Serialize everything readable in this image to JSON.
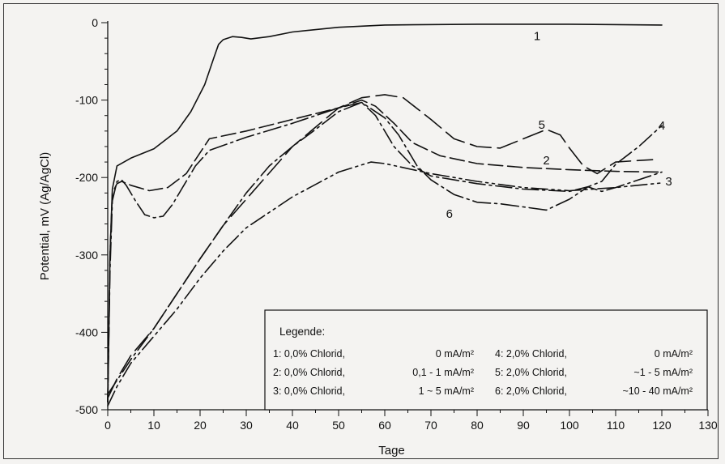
{
  "chart_data": {
    "type": "line",
    "title": "",
    "xlabel": "Tage",
    "ylabel": "Potential, mV (Ag/AgCl)",
    "xlim": [
      0,
      130
    ],
    "ylim": [
      -500,
      0
    ],
    "x_ticks": [
      0,
      10,
      20,
      30,
      40,
      50,
      60,
      70,
      80,
      90,
      100,
      110,
      120,
      130
    ],
    "y_ticks": [
      0,
      -100,
      -200,
      -300,
      -400,
      -500
    ],
    "grid": false,
    "series": [
      {
        "tag": "1",
        "dash": "",
        "points": [
          [
            0,
            -490
          ],
          [
            0.5,
            -300
          ],
          [
            1,
            -215
          ],
          [
            2,
            -185
          ],
          [
            5,
            -175
          ],
          [
            10,
            -163
          ],
          [
            15,
            -140
          ],
          [
            18,
            -115
          ],
          [
            21,
            -80
          ],
          [
            23,
            -45
          ],
          [
            24,
            -28
          ],
          [
            25,
            -22
          ],
          [
            27,
            -18
          ],
          [
            29,
            -19
          ],
          [
            31,
            -21
          ],
          [
            35,
            -18
          ],
          [
            40,
            -12
          ],
          [
            50,
            -6
          ],
          [
            60,
            -3
          ],
          [
            80,
            -2
          ],
          [
            100,
            -2
          ],
          [
            120,
            -3
          ]
        ]
      },
      {
        "tag": "2",
        "dash": "18 6",
        "points": [
          [
            0,
            -490
          ],
          [
            0.5,
            -300
          ],
          [
            1,
            -220
          ],
          [
            2,
            -208
          ],
          [
            3,
            -205
          ],
          [
            5,
            -210
          ],
          [
            9,
            -217
          ],
          [
            13,
            -213
          ],
          [
            17,
            -195
          ],
          [
            22,
            -150
          ],
          [
            30,
            -140
          ],
          [
            40,
            -125
          ],
          [
            50,
            -110
          ],
          [
            55,
            -100
          ],
          [
            58,
            -108
          ],
          [
            62,
            -130
          ],
          [
            66,
            -155
          ],
          [
            72,
            -172
          ],
          [
            80,
            -182
          ],
          [
            90,
            -187
          ],
          [
            100,
            -190
          ],
          [
            110,
            -192
          ],
          [
            120,
            -193
          ]
        ]
      },
      {
        "tag": "3",
        "dash": "20 5 3 5 3 5",
        "points": [
          [
            0,
            -495
          ],
          [
            2,
            -470
          ],
          [
            5,
            -440
          ],
          [
            10,
            -405
          ],
          [
            15,
            -370
          ],
          [
            20,
            -330
          ],
          [
            25,
            -295
          ],
          [
            30,
            -265
          ],
          [
            40,
            -225
          ],
          [
            50,
            -193
          ],
          [
            57,
            -180
          ],
          [
            60,
            -182
          ],
          [
            70,
            -195
          ],
          [
            80,
            -205
          ],
          [
            90,
            -213
          ],
          [
            100,
            -217
          ],
          [
            110,
            -213
          ],
          [
            120,
            -207
          ]
        ]
      },
      {
        "tag": "4",
        "dash": "20 5 3 5",
        "points": [
          [
            0,
            -480
          ],
          [
            2,
            -462
          ],
          [
            5,
            -435
          ],
          [
            10,
            -395
          ],
          [
            15,
            -350
          ],
          [
            20,
            -305
          ],
          [
            25,
            -262
          ],
          [
            30,
            -220
          ],
          [
            35,
            -185
          ],
          [
            40,
            -160
          ],
          [
            45,
            -138
          ],
          [
            50,
            -115
          ],
          [
            55,
            -103
          ],
          [
            58,
            -120
          ],
          [
            62,
            -160
          ],
          [
            66,
            -185
          ],
          [
            70,
            -198
          ],
          [
            80,
            -208
          ],
          [
            90,
            -215
          ],
          [
            100,
            -218
          ],
          [
            104,
            -212
          ],
          [
            107,
            -205
          ],
          [
            110,
            -183
          ],
          [
            115,
            -160
          ],
          [
            120,
            -133
          ]
        ]
      },
      {
        "tag": "5",
        "dash": "26 8",
        "points": [
          [
            0,
            -485
          ],
          [
            2,
            -460
          ],
          [
            5,
            -430
          ],
          [
            10,
            -395
          ],
          [
            15,
            -350
          ],
          [
            20,
            -305
          ],
          [
            25,
            -262
          ],
          [
            30,
            -228
          ],
          [
            40,
            -160
          ],
          [
            50,
            -110
          ],
          [
            55,
            -97
          ],
          [
            60,
            -93
          ],
          [
            64,
            -97
          ],
          [
            70,
            -125
          ],
          [
            75,
            -150
          ],
          [
            80,
            -160
          ],
          [
            85,
            -162
          ],
          [
            90,
            -150
          ],
          [
            95,
            -138
          ],
          [
            98,
            -145
          ],
          [
            100,
            -162
          ],
          [
            103,
            -185
          ],
          [
            106,
            -195
          ],
          [
            110,
            -180
          ],
          [
            115,
            -178
          ],
          [
            118,
            -177
          ]
        ]
      },
      {
        "tag": "6",
        "dash": "22 5 3 5",
        "points": [
          [
            0,
            -490
          ],
          [
            0.5,
            -320
          ],
          [
            1,
            -230
          ],
          [
            2,
            -205
          ],
          [
            3,
            -203
          ],
          [
            4,
            -210
          ],
          [
            6,
            -230
          ],
          [
            8,
            -248
          ],
          [
            10,
            -252
          ],
          [
            12,
            -250
          ],
          [
            14,
            -235
          ],
          [
            16,
            -215
          ],
          [
            19,
            -185
          ],
          [
            22,
            -165
          ],
          [
            30,
            -148
          ],
          [
            40,
            -130
          ],
          [
            50,
            -110
          ],
          [
            55,
            -103
          ],
          [
            60,
            -123
          ],
          [
            63,
            -145
          ],
          [
            67,
            -185
          ],
          [
            70,
            -203
          ],
          [
            75,
            -222
          ],
          [
            80,
            -232
          ],
          [
            85,
            -234
          ],
          [
            90,
            -238
          ],
          [
            95,
            -242
          ],
          [
            100,
            -228
          ],
          [
            104,
            -212
          ],
          [
            107,
            -218
          ],
          [
            110,
            -213
          ],
          [
            120,
            -193
          ]
        ]
      }
    ],
    "series_labels": [
      {
        "text": "1",
        "x": 93,
        "y": -17
      },
      {
        "text": "2",
        "x": 95,
        "y": -178
      },
      {
        "text": "3",
        "x": 121.5,
        "y": -205
      },
      {
        "text": "4",
        "x": 120,
        "y": -133
      },
      {
        "text": "5",
        "x": 94,
        "y": -132
      },
      {
        "text": "6",
        "x": 74,
        "y": -247
      }
    ],
    "legend": {
      "title": "Legende:",
      "placement": "bottom-right",
      "rows": [
        [
          "1: 0,0% Chlorid,",
          "0 mA/m²",
          "4: 2,0% Chlorid,",
          "0 mA/m²"
        ],
        [
          "2: 0,0% Chlorid,",
          "0,1 - 1 mA/m²",
          "5: 2,0% Chlorid,",
          "~1 - 5 mA/m²"
        ],
        [
          "3: 0,0% Chlorid,",
          "1 ~ 5 mA/m²",
          "6: 2,0% Chlorid,",
          "~10 - 40 mA/m²"
        ]
      ]
    }
  }
}
